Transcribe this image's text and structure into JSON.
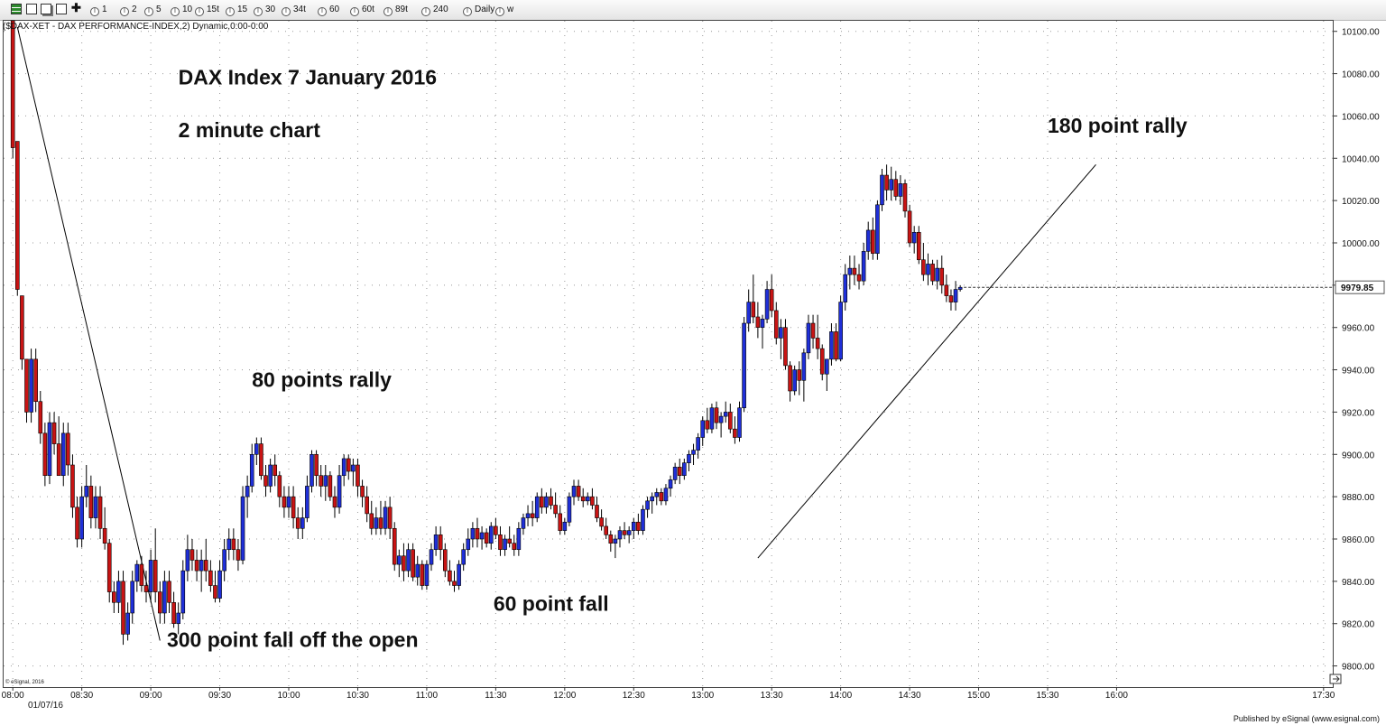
{
  "toolbar": {
    "intervals": [
      "1",
      "2",
      "5",
      "10",
      "15t",
      "15",
      "30",
      "34t",
      "60",
      "60t",
      "89t",
      "240",
      "Daily",
      "w"
    ]
  },
  "chart_header": "($DAX-XET - DAX PERFORMANCE-INDEX,2) Dynamic,0:00-0:00",
  "footer": {
    "publisher": "Published by eSignal (www.esignal.com)",
    "watermark": "© eSignal, 2016"
  },
  "colors": {
    "up": "#1f2fd8",
    "down": "#c81414",
    "grid": "#999999"
  },
  "chart_data": {
    "type": "candlestick",
    "title": "DAX Index 7 January 2016",
    "subtitle": "2 minute chart",
    "date_label": "01/07/16",
    "last_price_label": "9979.85",
    "ylim": [
      9790,
      10105
    ],
    "y_ticks": [
      9800,
      9820,
      9840,
      9860,
      9880,
      9900,
      9920,
      9940,
      9960,
      9980,
      10000,
      10020,
      10040,
      10060,
      10080,
      10100
    ],
    "y_tick_labels": [
      "9800.00",
      "9820.00",
      "9840.00",
      "9860.00",
      "9880.00",
      "9900.00",
      "9920.00",
      "9940.00",
      "9960.00",
      "9980.00",
      "10000.00",
      "10020.00",
      "10040.00",
      "10060.00",
      "10080.00",
      "10100.00"
    ],
    "x_ticks": [
      "08:00",
      "08:30",
      "09:00",
      "09:30",
      "10:00",
      "10:30",
      "11:00",
      "11:30",
      "12:00",
      "12:30",
      "13:00",
      "13:30",
      "14:00",
      "14:30",
      "15:00",
      "15:30",
      "16:00",
      "17:30"
    ],
    "x_tick_minutes": [
      480,
      510,
      540,
      570,
      600,
      630,
      660,
      690,
      720,
      750,
      780,
      810,
      840,
      870,
      900,
      930,
      960,
      1050
    ],
    "x_range_minutes": [
      476,
      1054
    ],
    "bar_interval_minutes": 2,
    "first_bar_minute": 480,
    "annotations": [
      {
        "text": "DAX Index 7 January 2016",
        "minute": 552,
        "value": 10075,
        "size": 23
      },
      {
        "text": "2 minute chart",
        "minute": 552,
        "value": 10050,
        "size": 23
      },
      {
        "text": "180 point rally",
        "minute": 930,
        "value": 10052,
        "size": 23
      },
      {
        "text": "80 points rally",
        "minute": 584,
        "value": 9932,
        "size": 23
      },
      {
        "text": "60 point fall",
        "minute": 689,
        "value": 9826,
        "size": 23
      },
      {
        "text": "300 point fall off the open",
        "minute": 547,
        "value": 9809,
        "size": 23
      }
    ],
    "trendlines": [
      {
        "x1": 482,
        "y1": 10102,
        "x2": 544,
        "y2": 9812
      },
      {
        "x1": 804,
        "y1": 9851,
        "x2": 951,
        "y2": 10037
      }
    ],
    "candles": [
      [
        10105,
        10105,
        10040,
        10045
      ],
      [
        10048,
        10048,
        9975,
        9978
      ],
      [
        9975,
        9975,
        9940,
        9945
      ],
      [
        9945,
        9945,
        9915,
        9920
      ],
      [
        9920,
        9950,
        9915,
        9945
      ],
      [
        9945,
        9950,
        9920,
        9925
      ],
      [
        9925,
        9930,
        9905,
        9910
      ],
      [
        9910,
        9915,
        9885,
        9890
      ],
      [
        9890,
        9920,
        9886,
        9915
      ],
      [
        9915,
        9920,
        9900,
        9905
      ],
      [
        9905,
        9918,
        9890,
        9890
      ],
      [
        9890,
        9915,
        9885,
        9910
      ],
      [
        9910,
        9915,
        9890,
        9895
      ],
      [
        9895,
        9900,
        9870,
        9875
      ],
      [
        9875,
        9880,
        9856,
        9860
      ],
      [
        9860,
        9885,
        9856,
        9880
      ],
      [
        9880,
        9895,
        9875,
        9885
      ],
      [
        9885,
        9890,
        9865,
        9870
      ],
      [
        9870,
        9885,
        9865,
        9880
      ],
      [
        9880,
        9885,
        9860,
        9865
      ],
      [
        9865,
        9875,
        9855,
        9858
      ],
      [
        9858,
        9860,
        9830,
        9835
      ],
      [
        9835,
        9840,
        9825,
        9830
      ],
      [
        9830,
        9845,
        9825,
        9840
      ],
      [
        9840,
        9845,
        9810,
        9815
      ],
      [
        9815,
        9830,
        9812,
        9825
      ],
      [
        9825,
        9845,
        9820,
        9840
      ],
      [
        9840,
        9850,
        9835,
        9848
      ],
      [
        9848,
        9852,
        9835,
        9838
      ],
      [
        9838,
        9845,
        9830,
        9835
      ],
      [
        9835,
        9855,
        9830,
        9850
      ],
      [
        9850,
        9865,
        9830,
        9835
      ],
      [
        9835,
        9840,
        9820,
        9825
      ],
      [
        9825,
        9845,
        9820,
        9840
      ],
      [
        9840,
        9845,
        9825,
        9830
      ],
      [
        9830,
        9835,
        9818,
        9820
      ],
      [
        9820,
        9830,
        9815,
        9825
      ],
      [
        9825,
        9850,
        9822,
        9845
      ],
      [
        9845,
        9862,
        9840,
        9855
      ],
      [
        9855,
        9860,
        9845,
        9850
      ],
      [
        9850,
        9855,
        9840,
        9845
      ],
      [
        9845,
        9855,
        9835,
        9850
      ],
      [
        9850,
        9860,
        9840,
        9845
      ],
      [
        9845,
        9850,
        9835,
        9838
      ],
      [
        9838,
        9845,
        9830,
        9832
      ],
      [
        9832,
        9850,
        9830,
        9845
      ],
      [
        9845,
        9860,
        9840,
        9855
      ],
      [
        9855,
        9865,
        9850,
        9860
      ],
      [
        9860,
        9865,
        9850,
        9855
      ],
      [
        9855,
        9860,
        9845,
        9850
      ],
      [
        9850,
        9885,
        9848,
        9880
      ],
      [
        9880,
        9890,
        9870,
        9885
      ],
      [
        9885,
        9905,
        9882,
        9900
      ],
      [
        9900,
        9908,
        9895,
        9905
      ],
      [
        9905,
        9908,
        9888,
        9890
      ],
      [
        9890,
        9895,
        9880,
        9885
      ],
      [
        9885,
        9898,
        9882,
        9895
      ],
      [
        9895,
        9900,
        9885,
        9890
      ],
      [
        9890,
        9892,
        9875,
        9880
      ],
      [
        9880,
        9885,
        9870,
        9875
      ],
      [
        9875,
        9885,
        9870,
        9880
      ],
      [
        9880,
        9885,
        9865,
        9870
      ],
      [
        9870,
        9875,
        9860,
        9865
      ],
      [
        9865,
        9875,
        9860,
        9870
      ],
      [
        9870,
        9890,
        9868,
        9885
      ],
      [
        9885,
        9902,
        9882,
        9900
      ],
      [
        9900,
        9902,
        9885,
        9890
      ],
      [
        9890,
        9895,
        9880,
        9885
      ],
      [
        9885,
        9895,
        9878,
        9890
      ],
      [
        9890,
        9892,
        9878,
        9880
      ],
      [
        9880,
        9885,
        9870,
        9875
      ],
      [
        9875,
        9895,
        9872,
        9890
      ],
      [
        9890,
        9900,
        9885,
        9898
      ],
      [
        9898,
        9900,
        9888,
        9892
      ],
      [
        9892,
        9898,
        9885,
        9895
      ],
      [
        9895,
        9898,
        9880,
        9885
      ],
      [
        9885,
        9888,
        9875,
        9880
      ],
      [
        9880,
        9885,
        9868,
        9872
      ],
      [
        9872,
        9878,
        9862,
        9865
      ],
      [
        9865,
        9875,
        9862,
        9870
      ],
      [
        9870,
        9878,
        9862,
        9865
      ],
      [
        9865,
        9878,
        9862,
        9875
      ],
      [
        9875,
        9880,
        9860,
        9865
      ],
      [
        9865,
        9868,
        9845,
        9848
      ],
      [
        9848,
        9855,
        9842,
        9852
      ],
      [
        9852,
        9858,
        9840,
        9845
      ],
      [
        9845,
        9858,
        9842,
        9855
      ],
      [
        9855,
        9858,
        9840,
        9842
      ],
      [
        9842,
        9852,
        9838,
        9848
      ],
      [
        9848,
        9850,
        9836,
        9838
      ],
      [
        9838,
        9850,
        9836,
        9848
      ],
      [
        9848,
        9858,
        9845,
        9855
      ],
      [
        9855,
        9866,
        9852,
        9862
      ],
      [
        9862,
        9866,
        9850,
        9855
      ],
      [
        9855,
        9858,
        9842,
        9845
      ],
      [
        9845,
        9850,
        9838,
        9840
      ],
      [
        9840,
        9845,
        9835,
        9838
      ],
      [
        9838,
        9850,
        9836,
        9848
      ],
      [
        9848,
        9858,
        9845,
        9855
      ],
      [
        9855,
        9865,
        9852,
        9860
      ],
      [
        9860,
        9868,
        9856,
        9865
      ],
      [
        9865,
        9870,
        9856,
        9860
      ],
      [
        9860,
        9866,
        9855,
        9863
      ],
      [
        9863,
        9865,
        9856,
        9858
      ],
      [
        9858,
        9868,
        9855,
        9866
      ],
      [
        9866,
        9870,
        9860,
        9862
      ],
      [
        9862,
        9866,
        9852,
        9855
      ],
      [
        9855,
        9862,
        9852,
        9860
      ],
      [
        9860,
        9866,
        9856,
        9858
      ],
      [
        9858,
        9862,
        9852,
        9855
      ],
      [
        9855,
        9868,
        9852,
        9865
      ],
      [
        9865,
        9872,
        9862,
        9870
      ],
      [
        9870,
        9876,
        9866,
        9872
      ],
      [
        9872,
        9878,
        9866,
        9870
      ],
      [
        9870,
        9882,
        9868,
        9880
      ],
      [
        9880,
        9884,
        9872,
        9875
      ],
      [
        9875,
        9882,
        9872,
        9880
      ],
      [
        9880,
        9884,
        9874,
        9876
      ],
      [
        9876,
        9882,
        9870,
        9872
      ],
      [
        9872,
        9876,
        9862,
        9864
      ],
      [
        9864,
        9870,
        9862,
        9868
      ],
      [
        9868,
        9882,
        9866,
        9880
      ],
      [
        9880,
        9888,
        9876,
        9885
      ],
      [
        9885,
        9888,
        9878,
        9880
      ],
      [
        9880,
        9884,
        9875,
        9878
      ],
      [
        9878,
        9882,
        9876,
        9880
      ],
      [
        9880,
        9884,
        9874,
        9876
      ],
      [
        9876,
        9880,
        9868,
        9870
      ],
      [
        9870,
        9874,
        9864,
        9866
      ],
      [
        9866,
        9870,
        9860,
        9862
      ],
      [
        9862,
        9864,
        9854,
        9858
      ],
      [
        9858,
        9862,
        9851,
        9860
      ],
      [
        9860,
        9866,
        9856,
        9864
      ],
      [
        9864,
        9868,
        9860,
        9862
      ],
      [
        9862,
        9866,
        9858,
        9864
      ],
      [
        9864,
        9870,
        9860,
        9868
      ],
      [
        9868,
        9872,
        9862,
        9864
      ],
      [
        9864,
        9876,
        9862,
        9874
      ],
      [
        9874,
        9880,
        9870,
        9878
      ],
      [
        9878,
        9882,
        9872,
        9880
      ],
      [
        9880,
        9884,
        9876,
        9882
      ],
      [
        9882,
        9884,
        9876,
        9878
      ],
      [
        9878,
        9886,
        9876,
        9884
      ],
      [
        9884,
        9890,
        9880,
        9888
      ],
      [
        9888,
        9896,
        9886,
        9894
      ],
      [
        9894,
        9898,
        9886,
        9890
      ],
      [
        9890,
        9898,
        9888,
        9896
      ],
      [
        9896,
        9902,
        9892,
        9900
      ],
      [
        9900,
        9905,
        9895,
        9902
      ],
      [
        9902,
        9910,
        9898,
        9908
      ],
      [
        9908,
        9918,
        9904,
        9916
      ],
      [
        9916,
        9922,
        9910,
        9912
      ],
      [
        9912,
        9924,
        9910,
        9922
      ],
      [
        9922,
        9925,
        9912,
        9915
      ],
      [
        9915,
        9920,
        9908,
        9918
      ],
      [
        9918,
        9925,
        9915,
        9920
      ],
      [
        9920,
        9924,
        9910,
        9912
      ],
      [
        9912,
        9918,
        9905,
        9908
      ],
      [
        9908,
        9925,
        9906,
        9922
      ],
      [
        9922,
        9965,
        9920,
        9962
      ],
      [
        9962,
        9978,
        9958,
        9972
      ],
      [
        9972,
        9985,
        9962,
        9965
      ],
      [
        9965,
        9972,
        9955,
        9960
      ],
      [
        9960,
        9966,
        9950,
        9964
      ],
      [
        9964,
        9982,
        9962,
        9978
      ],
      [
        9978,
        9985,
        9965,
        9968
      ],
      [
        9968,
        9972,
        9952,
        9955
      ],
      [
        9955,
        9964,
        9945,
        9960
      ],
      [
        9960,
        9964,
        9940,
        9942
      ],
      [
        9942,
        9944,
        9925,
        9930
      ],
      [
        9930,
        9942,
        9928,
        9940
      ],
      [
        9940,
        9944,
        9928,
        9935
      ],
      [
        9935,
        9950,
        9925,
        9948
      ],
      [
        9948,
        9966,
        9945,
        9962
      ],
      [
        9962,
        9966,
        9950,
        9955
      ],
      [
        9955,
        9966,
        9945,
        9950
      ],
      [
        9950,
        9952,
        9935,
        9938
      ],
      [
        9938,
        9944,
        9930,
        9945
      ],
      [
        9945,
        9962,
        9942,
        9958
      ],
      [
        9958,
        9962,
        9944,
        9945
      ],
      [
        9945,
        9975,
        9944,
        9972
      ],
      [
        9972,
        9990,
        9968,
        9985
      ],
      [
        9985,
        9994,
        9978,
        9988
      ],
      [
        9988,
        9994,
        9980,
        9985
      ],
      [
        9985,
        9990,
        9978,
        9982
      ],
      [
        9982,
        10000,
        9980,
        9996
      ],
      [
        9996,
        10010,
        9992,
        10006
      ],
      [
        10006,
        10012,
        9992,
        9995
      ],
      [
        9995,
        10020,
        9992,
        10018
      ],
      [
        10018,
        10035,
        10015,
        10032
      ],
      [
        10032,
        10037,
        10020,
        10025
      ],
      [
        10025,
        10036,
        10020,
        10030
      ],
      [
        10030,
        10034,
        10020,
        10022
      ],
      [
        10022,
        10032,
        10018,
        10028
      ],
      [
        10028,
        10030,
        10012,
        10015
      ],
      [
        10015,
        10018,
        9998,
        10000
      ],
      [
        10000,
        10008,
        9995,
        10005
      ],
      [
        10005,
        10008,
        9990,
        9992
      ],
      [
        9992,
        10000,
        9982,
        9985
      ],
      [
        9985,
        9995,
        9980,
        9990
      ],
      [
        9990,
        9992,
        9980,
        9982
      ],
      [
        9982,
        9992,
        9978,
        9988
      ],
      [
        9988,
        9994,
        9976,
        9980
      ],
      [
        9980,
        9985,
        9972,
        9975
      ],
      [
        9975,
        9978,
        9968,
        9972
      ],
      [
        9972,
        9982,
        9968,
        9978
      ],
      [
        9978,
        9980,
        9977,
        9979
      ]
    ]
  }
}
